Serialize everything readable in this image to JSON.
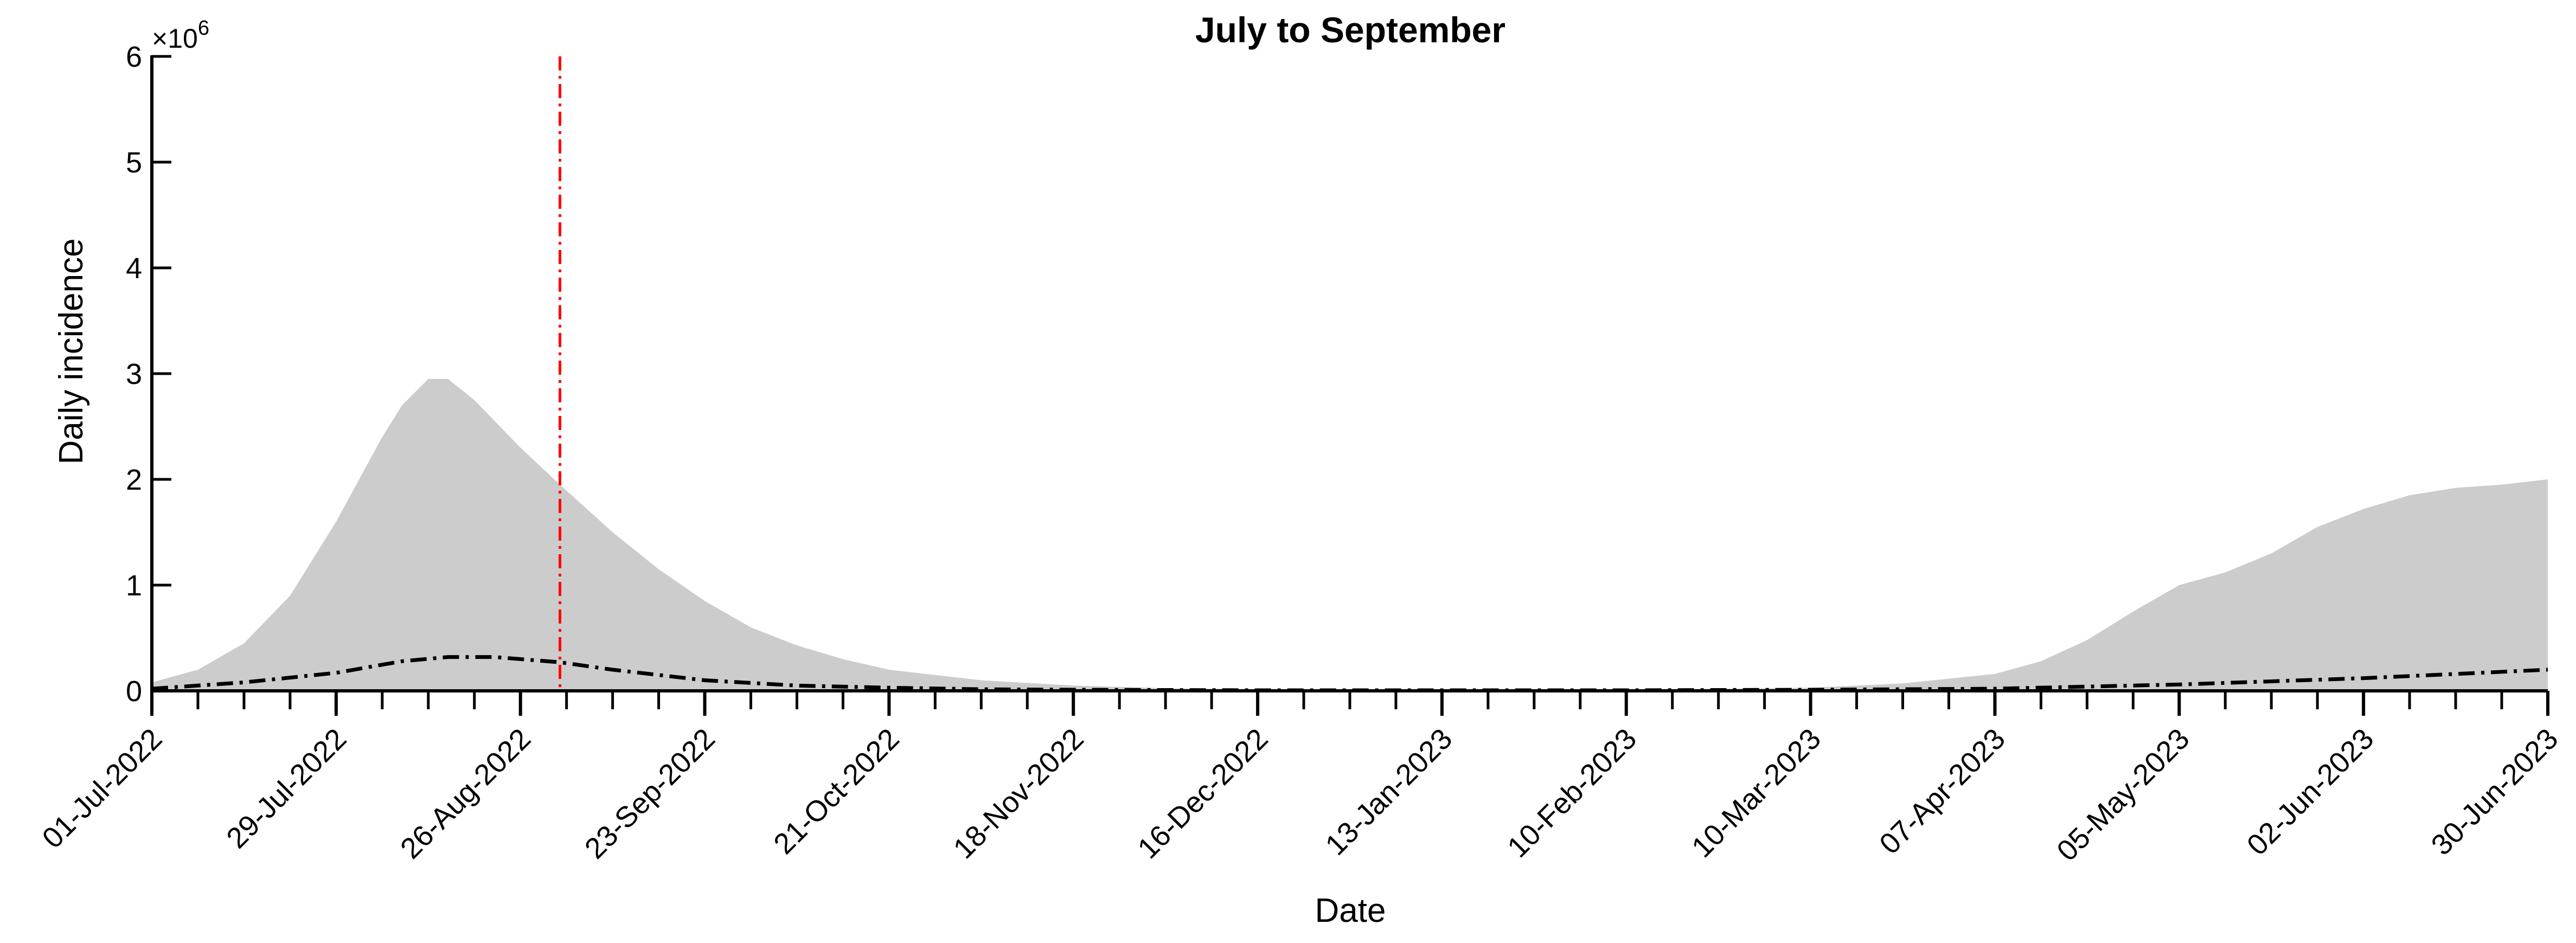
{
  "chart_data": {
    "type": "area",
    "title": "July to September",
    "xlabel": "Date",
    "ylabel": "Daily incidence",
    "y_multiplier_base": "×10",
    "y_multiplier_exp": "6",
    "ylim": [
      0,
      6
    ],
    "yticks": [
      "0",
      "1",
      "2",
      "3",
      "4",
      "5",
      "6"
    ],
    "xlim": [
      "2022-07-01",
      "2023-06-30"
    ],
    "xtick_labels": [
      "01-Jul-2022",
      "29-Jul-2022",
      "26-Aug-2022",
      "23-Sep-2022",
      "21-Oct-2022",
      "18-Nov-2022",
      "16-Dec-2022",
      "13-Jan-2023",
      "10-Feb-2023",
      "10-Mar-2023",
      "07-Apr-2023",
      "05-May-2023",
      "02-Jun-2023",
      "30-Jun-2023"
    ],
    "xtick_dates": [
      "2022-07-01",
      "2022-07-29",
      "2022-08-26",
      "2022-09-23",
      "2022-10-21",
      "2022-11-18",
      "2022-12-16",
      "2023-01-13",
      "2023-02-10",
      "2023-03-10",
      "2023-04-07",
      "2023-05-05",
      "2023-06-02",
      "2023-06-30"
    ],
    "minor_tick_interval_days": 7,
    "grid": false,
    "legend": "none",
    "vertical_marker": {
      "date": "2022-09-01",
      "color": "#ff0000",
      "style": "dash-dot"
    },
    "series": [
      {
        "style": "filled-area",
        "color": "#cccccc",
        "x": [
          "2022-07-01",
          "2022-07-08",
          "2022-07-15",
          "2022-07-22",
          "2022-07-29",
          "2022-08-05",
          "2022-08-08",
          "2022-08-12",
          "2022-08-15",
          "2022-08-19",
          "2022-08-26",
          "2022-09-01",
          "2022-09-09",
          "2022-09-16",
          "2022-09-23",
          "2022-09-30",
          "2022-10-07",
          "2022-10-14",
          "2022-10-21",
          "2022-11-04",
          "2022-11-18",
          "2022-12-02",
          "2022-12-16",
          "2023-01-13",
          "2023-02-10",
          "2023-03-10",
          "2023-03-24",
          "2023-04-07",
          "2023-04-14",
          "2023-04-21",
          "2023-04-28",
          "2023-05-05",
          "2023-05-12",
          "2023-05-19",
          "2023-05-26",
          "2023-06-02",
          "2023-06-09",
          "2023-06-16",
          "2023-06-23",
          "2023-06-30"
        ],
        "y": [
          0.08,
          0.2,
          0.45,
          0.9,
          1.6,
          2.4,
          2.7,
          2.95,
          2.95,
          2.75,
          2.3,
          1.95,
          1.5,
          1.15,
          0.85,
          0.6,
          0.43,
          0.3,
          0.2,
          0.1,
          0.05,
          0.025,
          0.015,
          0.01,
          0.01,
          0.03,
          0.07,
          0.16,
          0.28,
          0.48,
          0.75,
          1.0,
          1.12,
          1.3,
          1.55,
          1.72,
          1.85,
          1.92,
          1.95,
          2.0
        ]
      },
      {
        "style": "dash-dot-line",
        "color": "#000000",
        "x": [
          "2022-07-01",
          "2022-07-15",
          "2022-07-29",
          "2022-08-08",
          "2022-08-15",
          "2022-08-22",
          "2022-09-01",
          "2022-09-09",
          "2022-09-23",
          "2022-10-07",
          "2022-10-21",
          "2022-11-04",
          "2022-11-18",
          "2022-12-16",
          "2023-01-13",
          "2023-02-10",
          "2023-03-10",
          "2023-04-07",
          "2023-05-05",
          "2023-06-02",
          "2023-06-30"
        ],
        "y": [
          0.02,
          0.08,
          0.17,
          0.28,
          0.32,
          0.32,
          0.27,
          0.2,
          0.1,
          0.05,
          0.03,
          0.015,
          0.01,
          0.005,
          0.005,
          0.005,
          0.01,
          0.02,
          0.06,
          0.12,
          0.2
        ]
      }
    ]
  }
}
